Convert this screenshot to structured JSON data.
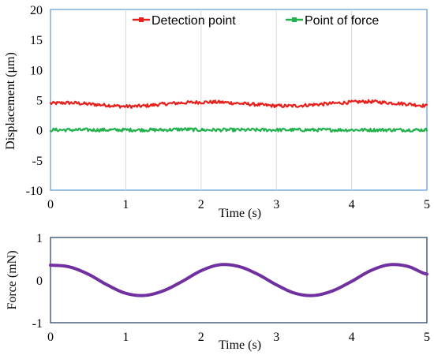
{
  "chart_data": [
    {
      "type": "line",
      "xlabel": "Time (s)",
      "ylabel": "Displacement (μm)",
      "xlim": [
        0,
        5
      ],
      "ylim": [
        -10,
        20
      ],
      "x_ticks": [
        "0",
        "1",
        "2",
        "3",
        "4",
        "5"
      ],
      "y_ticks": [
        "20",
        "15",
        "10",
        "5",
        "0",
        "-5",
        "-10"
      ],
      "grid": "vertical",
      "legend_position": "top",
      "x": [
        0,
        0.25,
        0.5,
        0.75,
        1.0,
        1.25,
        1.5,
        1.75,
        2.0,
        2.25,
        2.5,
        2.75,
        3.0,
        3.25,
        3.5,
        3.75,
        4.0,
        4.25,
        4.5,
        4.75,
        5.0
      ],
      "series": [
        {
          "name": "Detection point",
          "color": "#e8201c",
          "values": [
            4.4,
            4.5,
            4.3,
            4.1,
            3.9,
            4.0,
            4.3,
            4.5,
            4.6,
            4.6,
            4.4,
            4.2,
            4.0,
            4.0,
            4.2,
            4.4,
            4.6,
            4.7,
            4.5,
            4.3,
            4.0
          ]
        },
        {
          "name": "Point of force",
          "color": "#22b14c",
          "values": [
            0.0,
            0.0,
            0.0,
            0.0,
            0.0,
            0.0,
            0.0,
            0.1,
            0.0,
            0.0,
            0.0,
            0.0,
            0.0,
            0.0,
            0.0,
            0.0,
            0.0,
            0.0,
            0.0,
            0.0,
            0.0
          ]
        }
      ]
    },
    {
      "type": "line",
      "xlabel": "Time (s)",
      "ylabel": "Force (mN)",
      "xlim": [
        0,
        5
      ],
      "ylim": [
        -1,
        1
      ],
      "x_ticks": [
        "0",
        "1",
        "2",
        "3",
        "4",
        "5"
      ],
      "y_ticks": [
        "1",
        "0",
        "-1"
      ],
      "grid": "none",
      "x": [
        0,
        0.25,
        0.5,
        0.75,
        1.0,
        1.25,
        1.5,
        1.75,
        2.0,
        2.25,
        2.5,
        2.75,
        3.0,
        3.25,
        3.5,
        3.75,
        4.0,
        4.25,
        4.5,
        4.75,
        5.0
      ],
      "series": [
        {
          "color": "#7030a0",
          "values": [
            0.35,
            0.31,
            0.14,
            -0.11,
            -0.31,
            -0.36,
            -0.25,
            -0.03,
            0.22,
            0.36,
            0.32,
            0.14,
            -0.11,
            -0.31,
            -0.36,
            -0.25,
            -0.03,
            0.22,
            0.36,
            0.32,
            0.14
          ]
        }
      ]
    }
  ]
}
